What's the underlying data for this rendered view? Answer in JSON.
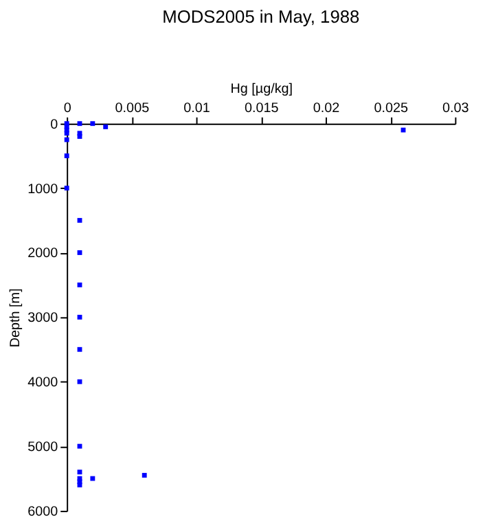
{
  "chart_data": {
    "type": "scatter",
    "title": "MODS2005 in May, 1988",
    "xlabel": "Hg [µg/kg]",
    "ylabel": "Depth [m]",
    "x": [
      0,
      0,
      0,
      0,
      0.001,
      0.002,
      0.003,
      0.026,
      0.001,
      0.001,
      0,
      0,
      0,
      0.001,
      0.001,
      0.001,
      0.001,
      0.001,
      0.001,
      0.001,
      0.001,
      0.001,
      0.001,
      0.001,
      0.002,
      0.006
    ],
    "values": [
      0,
      50,
      100,
      150,
      0,
      0,
      50,
      100,
      150,
      200,
      250,
      500,
      1000,
      1500,
      2000,
      2500,
      3000,
      3500,
      4000,
      5000,
      5400,
      5500,
      5550,
      5600,
      5500,
      5450
    ],
    "color": "#0000ff",
    "marker": "square",
    "xlim": [
      0,
      0.03
    ],
    "xticks": [
      0,
      0.005,
      0.01,
      0.015,
      0.02,
      0.025,
      0.03
    ],
    "ylim": [
      6000,
      0
    ],
    "yticks": [
      0,
      1000,
      2000,
      3000,
      4000,
      5000,
      6000
    ],
    "grid": false
  }
}
